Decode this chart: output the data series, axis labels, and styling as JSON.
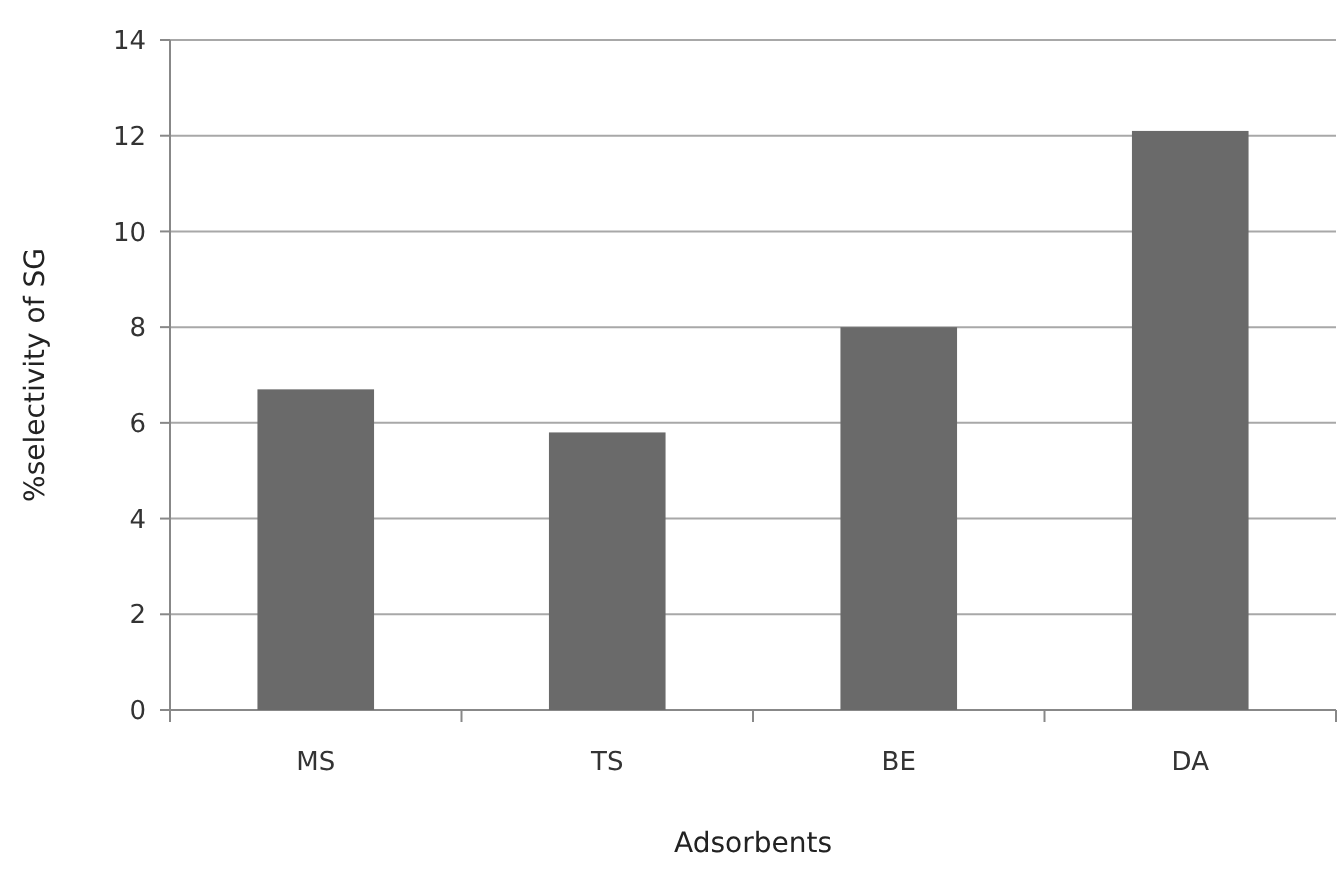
{
  "chart_data": {
    "type": "bar",
    "xlabel": "Adsorbents",
    "ylabel": "%selectivity of SG",
    "categories": [
      "MS",
      "TS",
      "BE",
      "DA"
    ],
    "values": [
      6.7,
      5.8,
      8.0,
      12.1
    ],
    "color": "#6a6a6a",
    "ylim": [
      0,
      14
    ],
    "yticks": [
      0,
      2,
      4,
      6,
      8,
      10,
      12,
      14
    ],
    "grid": "y"
  }
}
